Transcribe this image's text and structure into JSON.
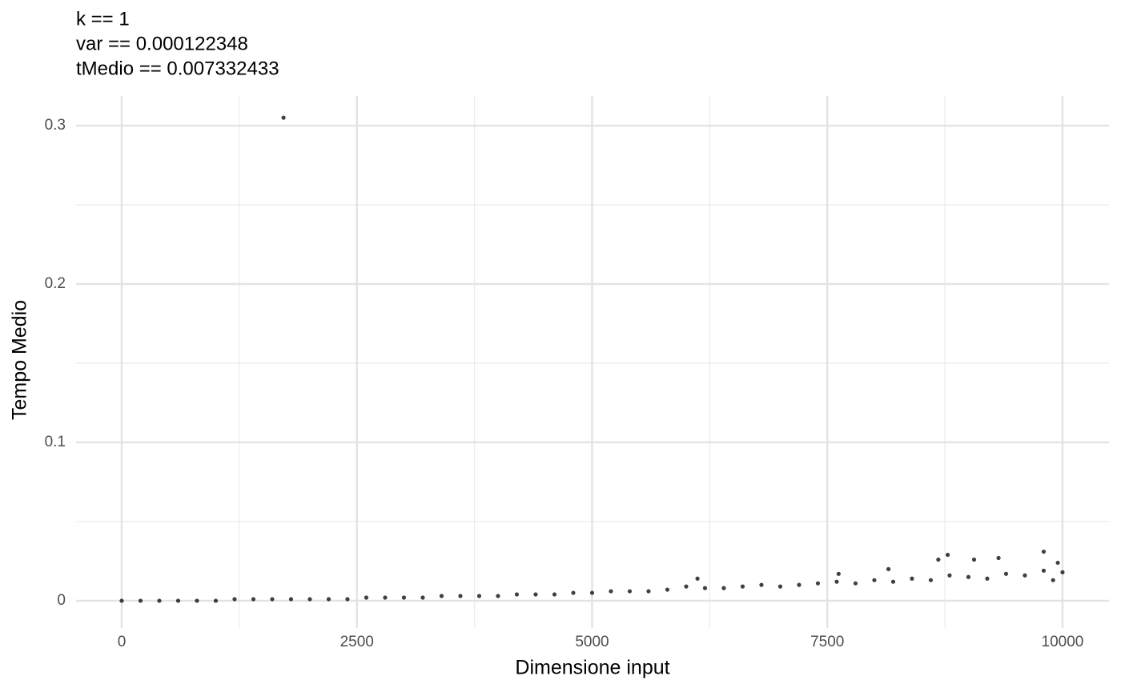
{
  "chart_data": {
    "type": "scatter",
    "title": [
      "k == 1",
      "var == 0.000122348",
      "tMedio == 0.007332433"
    ],
    "x_label": "Dimensione input",
    "y_label": "Tempo Medio",
    "color": "#000000",
    "grid": true,
    "xlim": [
      -485,
      10494
    ],
    "ylim": [
      -0.0172,
      0.3187
    ],
    "xticks": [
      0,
      2500,
      5000,
      7500,
      10000
    ],
    "yticks": [
      0.0,
      0.1,
      0.2,
      0.3
    ],
    "x": [
      0,
      200,
      400,
      600,
      800,
      1000,
      1200,
      1400,
      1600,
      1800,
      2000,
      2200,
      2400,
      2600,
      2800,
      3000,
      3200,
      3400,
      3600,
      3800,
      4000,
      4200,
      4400,
      4600,
      4800,
      5000,
      5200,
      5400,
      5600,
      5800,
      6000,
      6200,
      6400,
      6600,
      6800,
      7000,
      7200,
      7400,
      7600,
      7800,
      8000,
      8200,
      8400,
      8600,
      8800,
      9000,
      9200,
      9400,
      9600,
      9800,
      10000,
      1720,
      8680,
      8780,
      9060,
      9320,
      9800,
      9950,
      9900,
      8150,
      7620,
      6120
    ],
    "y": [
      0.0,
      0.0,
      0.0,
      0.0,
      0.0,
      0.0,
      0.001,
      0.001,
      0.001,
      0.001,
      0.001,
      0.001,
      0.001,
      0.002,
      0.002,
      0.002,
      0.002,
      0.003,
      0.003,
      0.003,
      0.003,
      0.004,
      0.004,
      0.004,
      0.005,
      0.005,
      0.006,
      0.006,
      0.006,
      0.007,
      0.009,
      0.008,
      0.008,
      0.009,
      0.01,
      0.009,
      0.01,
      0.011,
      0.012,
      0.011,
      0.013,
      0.012,
      0.014,
      0.013,
      0.016,
      0.015,
      0.014,
      0.017,
      0.016,
      0.019,
      0.018,
      0.305,
      0.026,
      0.029,
      0.026,
      0.027,
      0.031,
      0.024,
      0.013,
      0.02,
      0.017,
      0.014
    ]
  }
}
